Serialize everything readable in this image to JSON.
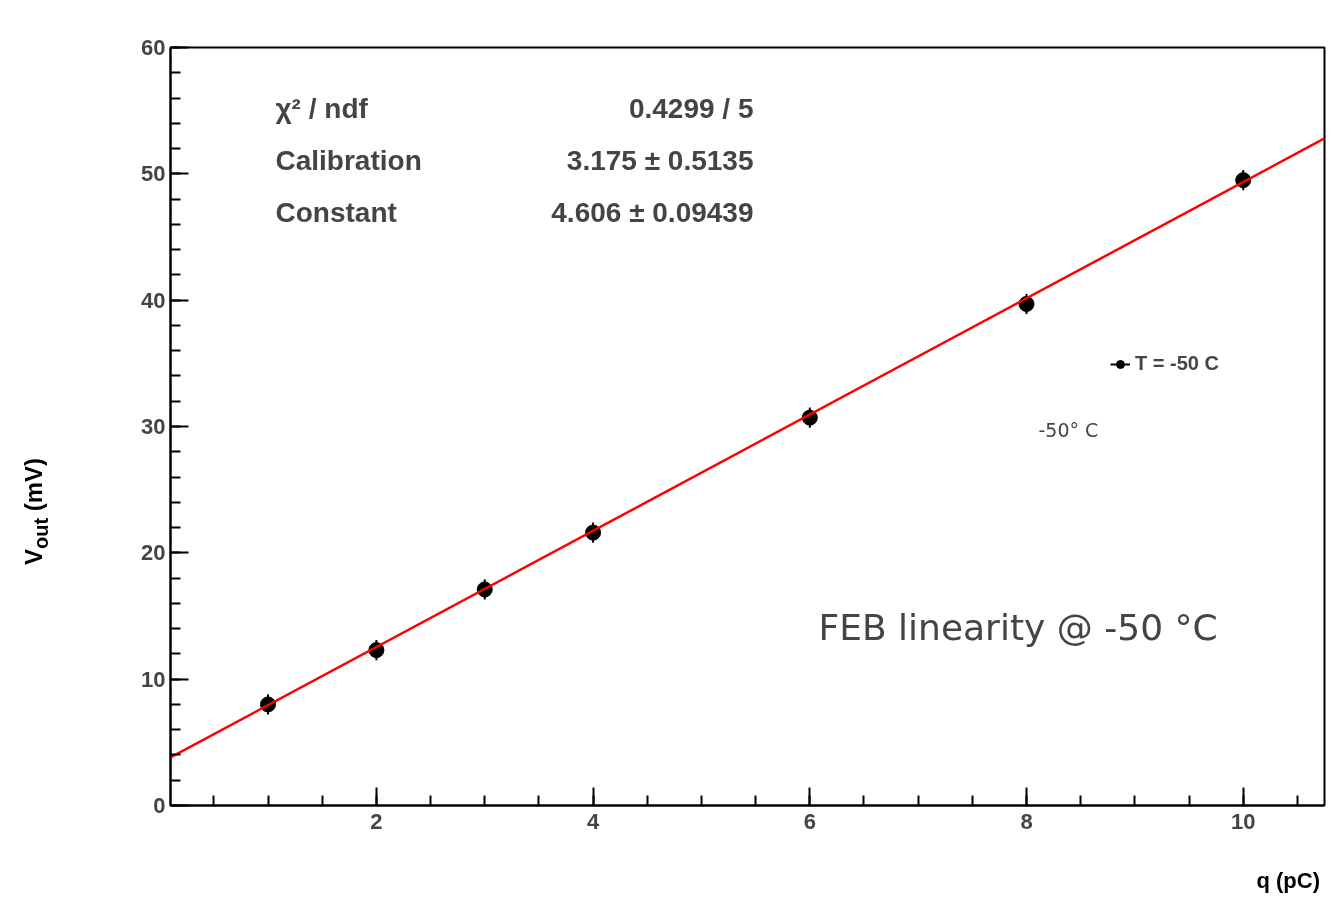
{
  "chart_data": {
    "type": "scatter",
    "xlabel": "q (pC)",
    "ylabel": "V$_{out}$ (mV)",
    "xlim": [
      0.1,
      10.75
    ],
    "ylim": [
      0,
      60
    ],
    "xticks": [
      2,
      4,
      6,
      8,
      10
    ],
    "yticks": [
      0,
      10,
      20,
      30,
      40,
      50,
      60
    ],
    "grid": false,
    "legend": "right",
    "marker": "circle",
    "series": [
      {
        "name": "T = -50 C",
        "color": "#000000",
        "x": [
          1,
          2,
          3,
          4,
          6,
          8,
          10
        ],
        "values": [
          8.0,
          12.3,
          17.1,
          21.6,
          30.7,
          39.7,
          49.5
        ],
        "errors": [
          0.8,
          0.8,
          0.8,
          0.8,
          0.8,
          0.8,
          0.8
        ]
      },
      {
        "type": "line",
        "color": "#ff0000",
        "x": [
          0.1,
          10.75
        ],
        "values": [
          3.8,
          52.8
        ],
        "marker": "none"
      }
    ],
    "annotations": [
      "χ² / ndf",
      "0.4299 / 5",
      "Calibration",
      "3.175 ± 0.5135",
      "Constant",
      "4.606 ± 0.09439",
      "-50° C",
      "FEB linearity @ -50 °C"
    ]
  }
}
